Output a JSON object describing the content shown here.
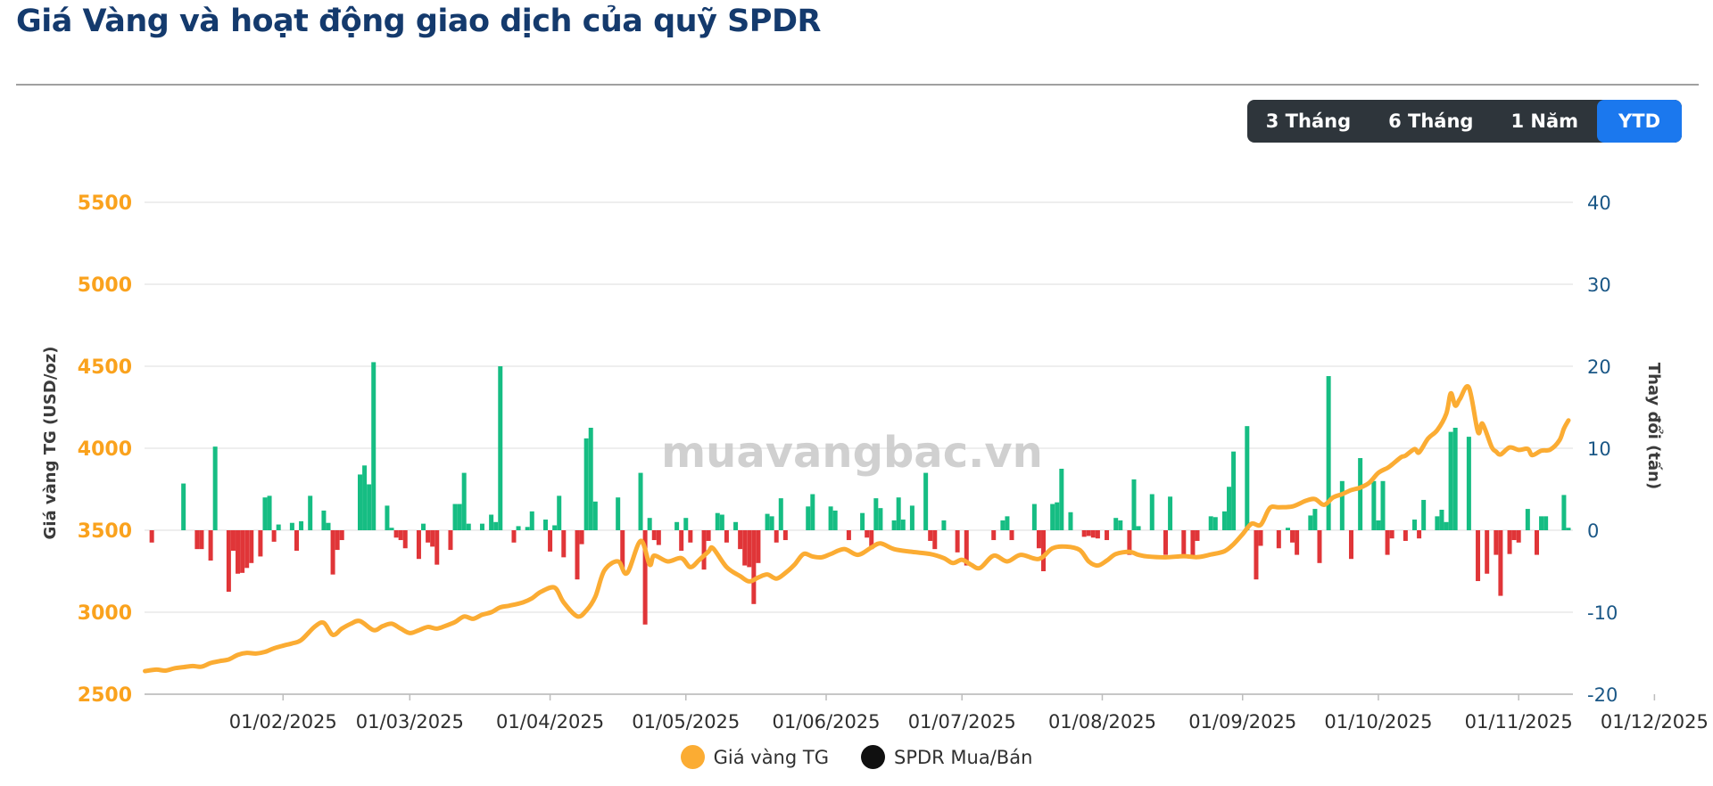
{
  "header": {
    "title": "Giá Vàng và hoạt động giao dịch của quỹ SPDR"
  },
  "range_buttons": [
    {
      "label": "3 Tháng",
      "active": false
    },
    {
      "label": "6 Tháng",
      "active": false
    },
    {
      "label": "1 Năm",
      "active": false
    },
    {
      "label": "YTD",
      "active": true
    }
  ],
  "watermark": "muavangbac.vn",
  "legend": [
    {
      "label": "Giá vàng TG",
      "color": "#fbac33"
    },
    {
      "label": "SPDR Mua/Bán",
      "color": "#101010"
    }
  ],
  "colors": {
    "title": "#143a6d",
    "line": "#fbac33",
    "bar_buy": "#16bd83",
    "bar_sell": "#e03538",
    "left_axis_labels": "#faa21d",
    "right_axis_labels": "#1a5786",
    "active_button": "#1b78ee",
    "button_bar": "#2e353b",
    "gridline": "#e8e8e8",
    "watermark": "#cccccc"
  },
  "chart_data": {
    "type": "line+bar",
    "title": "Giá Vàng và hoạt động giao dịch của quỹ SPDR",
    "left_axis": {
      "title": "Giá vàng TG (USD/oz)",
      "ticks": [
        5500,
        5000,
        4500,
        4000,
        3500,
        3000,
        2500
      ],
      "ylim": [
        2500,
        5500
      ],
      "color": "#faa21d"
    },
    "right_axis": {
      "title": "Thay đổi (tấn)",
      "ticks": [
        40,
        30,
        20,
        10,
        0,
        -10,
        -20
      ],
      "ylim": [
        -20,
        40
      ],
      "color": "#1a5786"
    },
    "x_axis": {
      "labels": [
        "01/02/2025",
        "01/03/2025",
        "01/04/2025",
        "01/05/2025",
        "01/06/2025",
        "01/07/2025",
        "01/08/2025",
        "01/09/2025",
        "01/10/2025",
        "01/11/2025",
        "01/12/2025"
      ],
      "label_days": [
        31,
        59,
        90,
        120,
        151,
        181,
        212,
        243,
        273,
        304,
        334
      ]
    },
    "line_series": {
      "name": "Giá vàng TG",
      "units": "USD/oz, points are [day-of-2025, price]",
      "color": "#fbac33",
      "points": [
        [
          0.5,
          2641
        ],
        [
          3,
          2650
        ],
        [
          5,
          2644
        ],
        [
          7,
          2658
        ],
        [
          9,
          2665
        ],
        [
          11,
          2672
        ],
        [
          13,
          2668
        ],
        [
          15,
          2690
        ],
        [
          17,
          2702
        ],
        [
          19,
          2712
        ],
        [
          21,
          2740
        ],
        [
          23,
          2752
        ],
        [
          25,
          2748
        ],
        [
          27,
          2758
        ],
        [
          29,
          2780
        ],
        [
          31,
          2796
        ],
        [
          33,
          2810
        ],
        [
          35,
          2830
        ],
        [
          38,
          2912
        ],
        [
          40,
          2935
        ],
        [
          42,
          2862
        ],
        [
          44,
          2900
        ],
        [
          46,
          2930
        ],
        [
          48,
          2946
        ],
        [
          51,
          2891
        ],
        [
          53,
          2915
        ],
        [
          55,
          2930
        ],
        [
          57,
          2900
        ],
        [
          59,
          2873
        ],
        [
          61,
          2890
        ],
        [
          63,
          2910
        ],
        [
          65,
          2900
        ],
        [
          67,
          2918
        ],
        [
          69,
          2940
        ],
        [
          71,
          2974
        ],
        [
          73,
          2960
        ],
        [
          75,
          2985
        ],
        [
          77,
          3000
        ],
        [
          79,
          3030
        ],
        [
          81,
          3040
        ],
        [
          84,
          3060
        ],
        [
          86,
          3085
        ],
        [
          88,
          3125
        ],
        [
          91,
          3150
        ],
        [
          93,
          3060
        ],
        [
          96,
          2975
        ],
        [
          98,
          3010
        ],
        [
          100,
          3095
        ],
        [
          102,
          3255
        ],
        [
          105,
          3310
        ],
        [
          107,
          3238
        ],
        [
          110,
          3435
        ],
        [
          112,
          3290
        ],
        [
          113,
          3345
        ],
        [
          116,
          3310
        ],
        [
          119,
          3330
        ],
        [
          121,
          3275
        ],
        [
          123,
          3320
        ],
        [
          125,
          3370
        ],
        [
          126,
          3390
        ],
        [
          129,
          3275
        ],
        [
          132,
          3220
        ],
        [
          134,
          3188
        ],
        [
          136,
          3212
        ],
        [
          138,
          3230
        ],
        [
          140,
          3205
        ],
        [
          142,
          3240
        ],
        [
          144,
          3290
        ],
        [
          146,
          3355
        ],
        [
          148,
          3340
        ],
        [
          150,
          3335
        ],
        [
          152,
          3355
        ],
        [
          155,
          3385
        ],
        [
          158,
          3350
        ],
        [
          161,
          3395
        ],
        [
          163,
          3420
        ],
        [
          166,
          3385
        ],
        [
          170,
          3368
        ],
        [
          174,
          3355
        ],
        [
          177,
          3330
        ],
        [
          179,
          3300
        ],
        [
          181,
          3320
        ],
        [
          183,
          3290
        ],
        [
          185,
          3270
        ],
        [
          188,
          3345
        ],
        [
          191,
          3310
        ],
        [
          194,
          3350
        ],
        [
          198,
          3325
        ],
        [
          201,
          3390
        ],
        [
          204,
          3400
        ],
        [
          207,
          3380
        ],
        [
          209,
          3310
        ],
        [
          211,
          3285
        ],
        [
          213,
          3315
        ],
        [
          215,
          3355
        ],
        [
          218,
          3368
        ],
        [
          220,
          3350
        ],
        [
          222,
          3340
        ],
        [
          226,
          3335
        ],
        [
          230,
          3342
        ],
        [
          233,
          3336
        ],
        [
          236,
          3352
        ],
        [
          239,
          3372
        ],
        [
          241,
          3415
        ],
        [
          243,
          3476
        ],
        [
          245,
          3540
        ],
        [
          247,
          3533
        ],
        [
          249,
          3635
        ],
        [
          251,
          3640
        ],
        [
          254,
          3645
        ],
        [
          257,
          3680
        ],
        [
          259,
          3690
        ],
        [
          261,
          3655
        ],
        [
          263,
          3700
        ],
        [
          265,
          3720
        ],
        [
          267,
          3745
        ],
        [
          269,
          3760
        ],
        [
          271,
          3790
        ],
        [
          273,
          3850
        ],
        [
          275,
          3880
        ],
        [
          276,
          3900
        ],
        [
          278,
          3945
        ],
        [
          279,
          3955
        ],
        [
          281,
          3995
        ],
        [
          282,
          3975
        ],
        [
          284,
          4060
        ],
        [
          286,
          4110
        ],
        [
          288,
          4210
        ],
        [
          289,
          4335
        ],
        [
          290,
          4260
        ],
        [
          291,
          4300
        ],
        [
          293,
          4370
        ],
        [
          295,
          4100
        ],
        [
          296,
          4150
        ],
        [
          298,
          4010
        ],
        [
          299,
          3980
        ],
        [
          300,
          3962
        ],
        [
          302,
          4005
        ],
        [
          304,
          3990
        ],
        [
          306,
          3996
        ],
        [
          307,
          3958
        ],
        [
          309,
          3985
        ],
        [
          311,
          3992
        ],
        [
          313,
          4048
        ],
        [
          314,
          4120
        ],
        [
          315,
          4170
        ]
      ]
    },
    "bar_series": {
      "name": "SPDR Mua/Bán",
      "units": "tấn, points are [day-of-2025, tons]; positive = Mua (green), negative = Bán (red)",
      "pos_color": "#16bd83",
      "neg_color": "#e03538",
      "points": [
        [
          2,
          -1.5
        ],
        [
          9,
          5.7
        ],
        [
          12,
          -2.3
        ],
        [
          13,
          -2.3
        ],
        [
          15,
          -3.7
        ],
        [
          16,
          10.2
        ],
        [
          19,
          -7.5
        ],
        [
          20,
          -2.5
        ],
        [
          21,
          -5.3
        ],
        [
          22,
          -5.2
        ],
        [
          23,
          -4.6
        ],
        [
          24,
          -4.0
        ],
        [
          26,
          -3.2
        ],
        [
          27,
          4.0
        ],
        [
          28,
          4.2
        ],
        [
          29,
          -1.4
        ],
        [
          30,
          0.7
        ],
        [
          33,
          0.9
        ],
        [
          34,
          -2.5
        ],
        [
          35,
          1.1
        ],
        [
          37,
          4.2
        ],
        [
          40,
          2.4
        ],
        [
          41,
          0.9
        ],
        [
          42,
          -5.4
        ],
        [
          43,
          -2.4
        ],
        [
          44,
          -1.2
        ],
        [
          48,
          6.8
        ],
        [
          49,
          7.9
        ],
        [
          50,
          5.6
        ],
        [
          51,
          20.5
        ],
        [
          54,
          3.0
        ],
        [
          55,
          0.3
        ],
        [
          56,
          -0.9
        ],
        [
          57,
          -1.2
        ],
        [
          58,
          -2.2
        ],
        [
          61,
          -3.5
        ],
        [
          62,
          0.8
        ],
        [
          63,
          -1.5
        ],
        [
          64,
          -2.0
        ],
        [
          65,
          -4.2
        ],
        [
          68,
          -2.4
        ],
        [
          69,
          3.2
        ],
        [
          70,
          3.2
        ],
        [
          71,
          7.0
        ],
        [
          72,
          0.8
        ],
        [
          75,
          0.8
        ],
        [
          77,
          1.9
        ],
        [
          78,
          1.0
        ],
        [
          79,
          20.0
        ],
        [
          82,
          -1.5
        ],
        [
          83,
          0.5
        ],
        [
          85,
          0.4
        ],
        [
          86,
          2.3
        ],
        [
          89,
          1.3
        ],
        [
          90,
          -2.6
        ],
        [
          91,
          0.6
        ],
        [
          92,
          4.2
        ],
        [
          93,
          -3.3
        ],
        [
          96,
          -6.0
        ],
        [
          97,
          -1.7
        ],
        [
          98,
          11.2
        ],
        [
          99,
          12.5
        ],
        [
          100,
          3.5
        ],
        [
          105,
          4.0
        ],
        [
          106,
          -4.7
        ],
        [
          110,
          7.0
        ],
        [
          111,
          -11.5
        ],
        [
          112,
          1.5
        ],
        [
          113,
          -1.2
        ],
        [
          114,
          -1.8
        ],
        [
          118,
          1.0
        ],
        [
          119,
          -2.5
        ],
        [
          120,
          1.5
        ],
        [
          121,
          -1.5
        ],
        [
          124,
          -4.8
        ],
        [
          125,
          -1.3
        ],
        [
          127,
          2.1
        ],
        [
          128,
          1.9
        ],
        [
          129,
          -1.5
        ],
        [
          131,
          1.0
        ],
        [
          132,
          -2.3
        ],
        [
          133,
          -4.3
        ],
        [
          134,
          -4.5
        ],
        [
          135,
          -9.0
        ],
        [
          136,
          -4.0
        ],
        [
          138,
          2.0
        ],
        [
          139,
          1.7
        ],
        [
          140,
          -1.5
        ],
        [
          141,
          3.9
        ],
        [
          142,
          -1.2
        ],
        [
          147,
          2.9
        ],
        [
          148,
          4.4
        ],
        [
          152,
          2.9
        ],
        [
          153,
          2.4
        ],
        [
          156,
          -1.2
        ],
        [
          159,
          2.1
        ],
        [
          160,
          -0.9
        ],
        [
          161,
          -2.3
        ],
        [
          162,
          3.9
        ],
        [
          163,
          2.7
        ],
        [
          166,
          1.2
        ],
        [
          167,
          4.0
        ],
        [
          168,
          1.3
        ],
        [
          170,
          3.0
        ],
        [
          173,
          7.0
        ],
        [
          174,
          -1.3
        ],
        [
          175,
          -2.3
        ],
        [
          177,
          1.2
        ],
        [
          180,
          -2.7
        ],
        [
          182,
          -4.3
        ],
        [
          188,
          -1.2
        ],
        [
          190,
          1.2
        ],
        [
          191,
          1.7
        ],
        [
          192,
          -1.2
        ],
        [
          197,
          3.2
        ],
        [
          198,
          -2.2
        ],
        [
          199,
          -5.0
        ],
        [
          201,
          3.2
        ],
        [
          202,
          3.4
        ],
        [
          203,
          7.5
        ],
        [
          205,
          2.2
        ],
        [
          208,
          -0.8
        ],
        [
          209,
          -0.7
        ],
        [
          210,
          -0.9
        ],
        [
          211,
          -1.0
        ],
        [
          213,
          -1.2
        ],
        [
          215,
          1.5
        ],
        [
          216,
          1.2
        ],
        [
          218,
          -3.0
        ],
        [
          219,
          6.2
        ],
        [
          220,
          0.5
        ],
        [
          223,
          4.4
        ],
        [
          226,
          -3.0
        ],
        [
          227,
          4.1
        ],
        [
          230,
          -3.4
        ],
        [
          232,
          -3.1
        ],
        [
          233,
          -1.3
        ],
        [
          236,
          1.7
        ],
        [
          237,
          1.6
        ],
        [
          239,
          2.3
        ],
        [
          240,
          5.3
        ],
        [
          241,
          9.6
        ],
        [
          244,
          12.7
        ],
        [
          246,
          -6.0
        ],
        [
          247,
          -1.9
        ],
        [
          251,
          -2.2
        ],
        [
          253,
          0.3
        ],
        [
          254,
          -1.5
        ],
        [
          255,
          -3.0
        ],
        [
          258,
          1.8
        ],
        [
          259,
          2.6
        ],
        [
          260,
          -4.0
        ],
        [
          262,
          18.8
        ],
        [
          265,
          6.0
        ],
        [
          267,
          -3.5
        ],
        [
          269,
          8.8
        ],
        [
          272,
          6.0
        ],
        [
          273,
          1.2
        ],
        [
          274,
          6.0
        ],
        [
          275,
          -3.0
        ],
        [
          276,
          -1.0
        ],
        [
          279,
          -1.3
        ],
        [
          281,
          1.3
        ],
        [
          282,
          -1.0
        ],
        [
          283,
          3.7
        ],
        [
          286,
          1.7
        ],
        [
          287,
          2.5
        ],
        [
          288,
          1.0
        ],
        [
          289,
          12.0
        ],
        [
          290,
          12.5
        ],
        [
          293,
          11.4
        ],
        [
          295,
          -6.2
        ],
        [
          297,
          -5.3
        ],
        [
          299,
          -3.0
        ],
        [
          300,
          -8.0
        ],
        [
          302,
          -2.9
        ],
        [
          303,
          -1.2
        ],
        [
          304,
          -1.5
        ],
        [
          306,
          2.6
        ],
        [
          308,
          -3.0
        ],
        [
          309,
          1.7
        ],
        [
          310,
          1.7
        ],
        [
          314,
          4.3
        ],
        [
          315,
          0.3
        ]
      ]
    }
  }
}
